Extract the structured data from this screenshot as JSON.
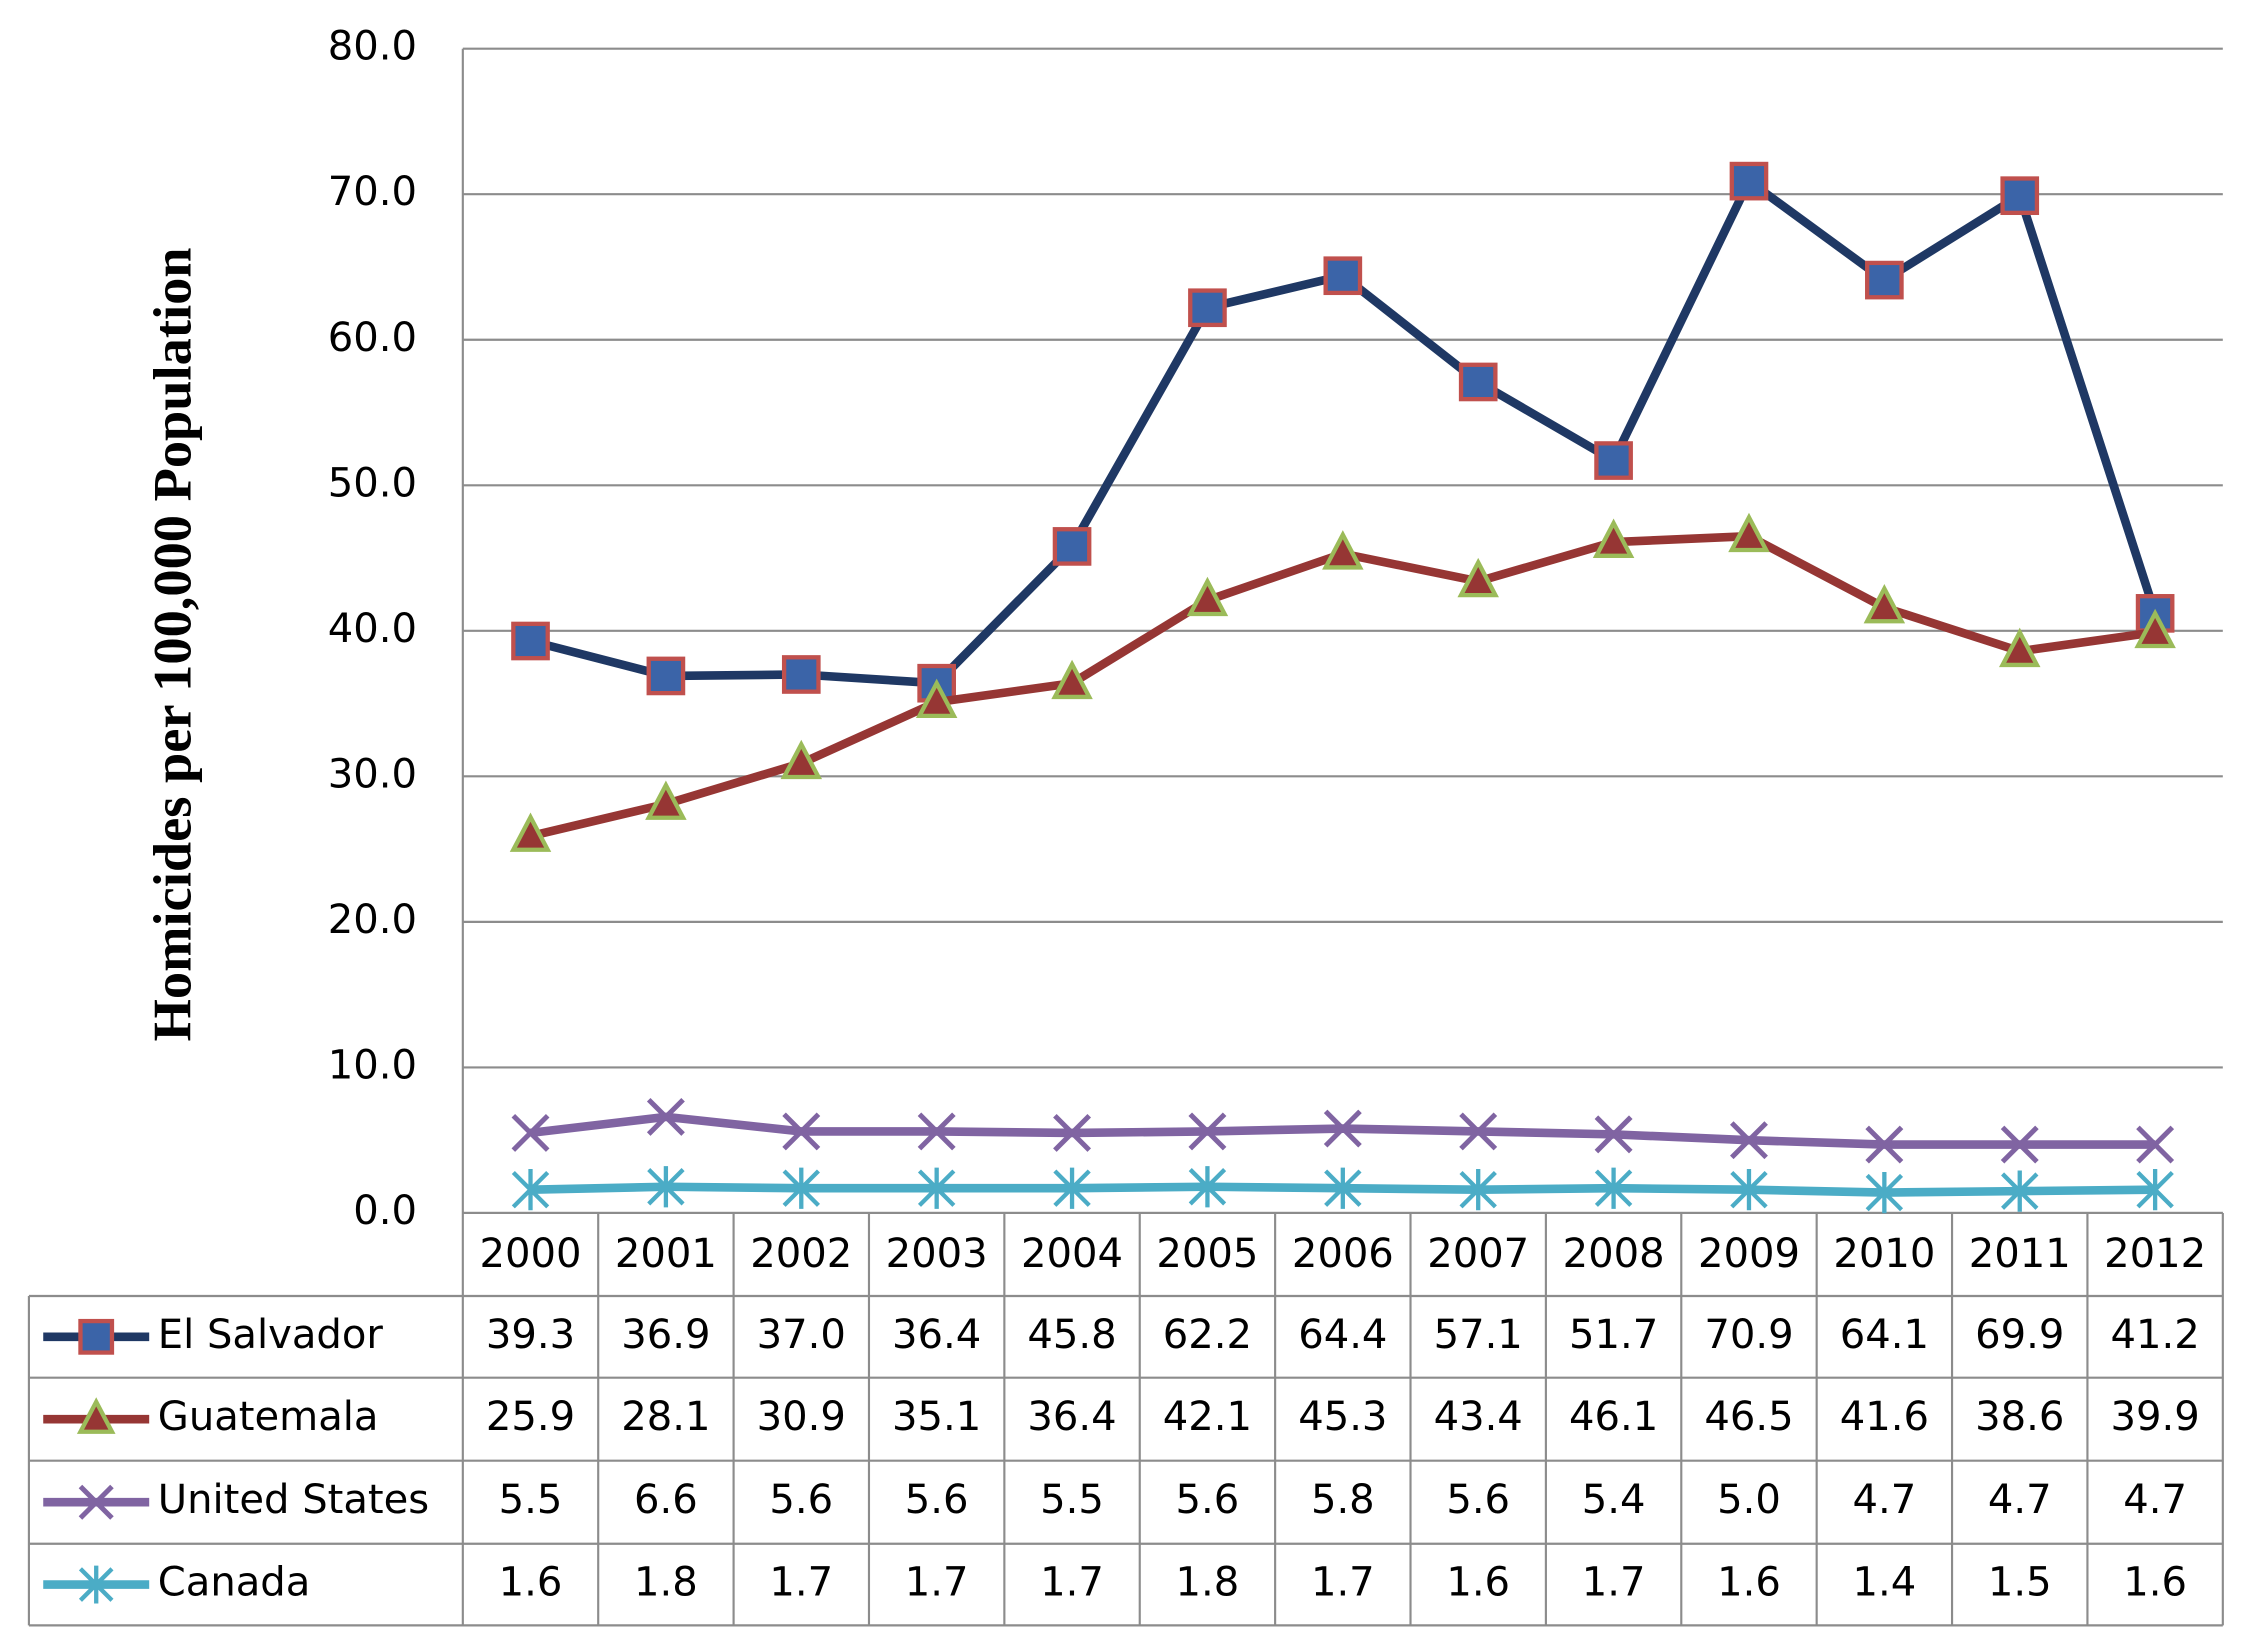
{
  "chart_data": {
    "type": "line",
    "y_label": "Homicides per 100,000 Population",
    "categories": [
      "2000",
      "2001",
      "2002",
      "2003",
      "2004",
      "2005",
      "2006",
      "2007",
      "2008",
      "2009",
      "2010",
      "2011",
      "2012"
    ],
    "series": [
      {
        "name": "El Salvador",
        "color": "#1f3864",
        "marker": "square",
        "marker_fill": "#3b64a8",
        "marker_stroke": "#c0504d",
        "values": [
          39.3,
          36.9,
          37.0,
          36.4,
          45.8,
          62.2,
          64.4,
          57.1,
          51.7,
          70.9,
          64.1,
          69.9,
          41.2
        ],
        "value_labels": [
          "39.3",
          "36.9",
          "37.0",
          "36.4",
          "45.8",
          "62.2",
          "64.4",
          "57.1",
          "51.7",
          "70.9",
          "64.1",
          "69.9",
          "41.2"
        ]
      },
      {
        "name": "Guatemala",
        "color": "#963634",
        "marker": "triangle",
        "marker_fill": "#963634",
        "marker_stroke": "#9bbb59",
        "values": [
          25.9,
          28.1,
          30.9,
          35.1,
          36.4,
          42.1,
          45.3,
          43.4,
          46.1,
          46.5,
          41.6,
          38.6,
          39.9
        ],
        "value_labels": [
          "25.9",
          "28.1",
          "30.9",
          "35.1",
          "36.4",
          "42.1",
          "45.3",
          "43.4",
          "46.1",
          "46.5",
          "41.6",
          "38.6",
          "39.9"
        ]
      },
      {
        "name": "United States",
        "color": "#8064a2",
        "marker": "x",
        "marker_fill": "none",
        "marker_stroke": "#8064a2",
        "values": [
          5.5,
          6.6,
          5.6,
          5.6,
          5.5,
          5.6,
          5.8,
          5.6,
          5.4,
          5.0,
          4.7,
          4.7,
          4.7
        ],
        "value_labels": [
          "5.5",
          "6.6",
          "5.6",
          "5.6",
          "5.5",
          "5.6",
          "5.8",
          "5.6",
          "5.4",
          "5.0",
          "4.7",
          "4.7",
          "4.7"
        ]
      },
      {
        "name": "Canada",
        "color": "#4bacc6",
        "marker": "asterisk",
        "marker_fill": "none",
        "marker_stroke": "#4bacc6",
        "values": [
          1.6,
          1.8,
          1.7,
          1.7,
          1.7,
          1.8,
          1.7,
          1.6,
          1.7,
          1.6,
          1.4,
          1.5,
          1.6
        ],
        "value_labels": [
          "1.6",
          "1.8",
          "1.7",
          "1.7",
          "1.7",
          "1.8",
          "1.7",
          "1.6",
          "1.7",
          "1.6",
          "1.4",
          "1.5",
          "1.6"
        ]
      }
    ],
    "ylim": [
      0,
      80
    ],
    "yticks": [
      {
        "value": 0,
        "label": "0.0"
      },
      {
        "value": 10,
        "label": "10.0"
      },
      {
        "value": 20,
        "label": "20.0"
      },
      {
        "value": 30,
        "label": "30.0"
      },
      {
        "value": 40,
        "label": "40.0"
      },
      {
        "value": 50,
        "label": "50.0"
      },
      {
        "value": 60,
        "label": "60.0"
      },
      {
        "value": 70,
        "label": "70.0"
      },
      {
        "value": 80,
        "label": "80.0"
      }
    ],
    "grid": true
  }
}
